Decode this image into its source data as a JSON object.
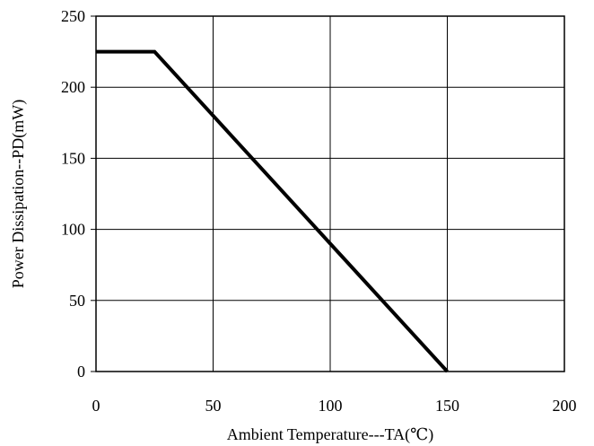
{
  "chart_data": {
    "type": "line",
    "title": "",
    "xlabel": "Ambient Temperature---TA(℃)",
    "ylabel": "Power Dissipation--PD(mW)",
    "xlim": [
      0,
      200
    ],
    "ylim": [
      0,
      250
    ],
    "x_ticks": [
      0,
      50,
      100,
      150,
      200
    ],
    "y_ticks": [
      0,
      50,
      100,
      150,
      200,
      250
    ],
    "grid": true,
    "legend": "none",
    "series": [
      {
        "color": "#000000",
        "x": [
          0,
          25,
          150
        ],
        "y": [
          225,
          225,
          0
        ]
      }
    ]
  }
}
